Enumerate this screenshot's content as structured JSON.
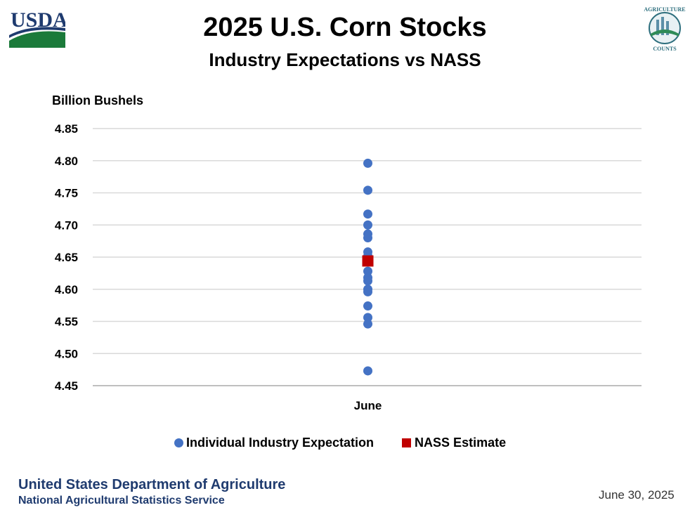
{
  "header": {
    "title": "2025 U.S. Corn Stocks",
    "subtitle": "Industry Expectations vs NASS",
    "logo_left": "USDA",
    "logo_right_top": "AGRICULTURE",
    "logo_right_bottom": "COUNTS"
  },
  "footer": {
    "org": "United States Department of Agriculture",
    "service": "National Agricultural Statistics Service",
    "date": "June 30, 2025"
  },
  "colors": {
    "expectation": "#4472c4",
    "nass": "#c00000",
    "grid": "#d9d9d9",
    "footer_text": "#1f3b6f"
  },
  "chart_data": {
    "type": "scatter",
    "ylabel": "Billion Bushels",
    "ylim": [
      4.45,
      4.85
    ],
    "yticks": [
      "4.45",
      "4.50",
      "4.55",
      "4.60",
      "4.65",
      "4.70",
      "4.75",
      "4.80",
      "4.85"
    ],
    "categories": [
      "June"
    ],
    "grid": true,
    "legend_position": "bottom",
    "series": [
      {
        "name": "Individual Industry Expectation",
        "marker": "circle",
        "x": "June",
        "values": [
          4.796,
          4.754,
          4.717,
          4.7,
          4.686,
          4.68,
          4.658,
          4.652,
          4.628,
          4.618,
          4.613,
          4.6,
          4.596,
          4.574,
          4.556,
          4.546,
          4.473
        ]
      },
      {
        "name": "NASS Estimate",
        "marker": "square",
        "x": "June",
        "values": [
          4.644
        ]
      }
    ]
  }
}
